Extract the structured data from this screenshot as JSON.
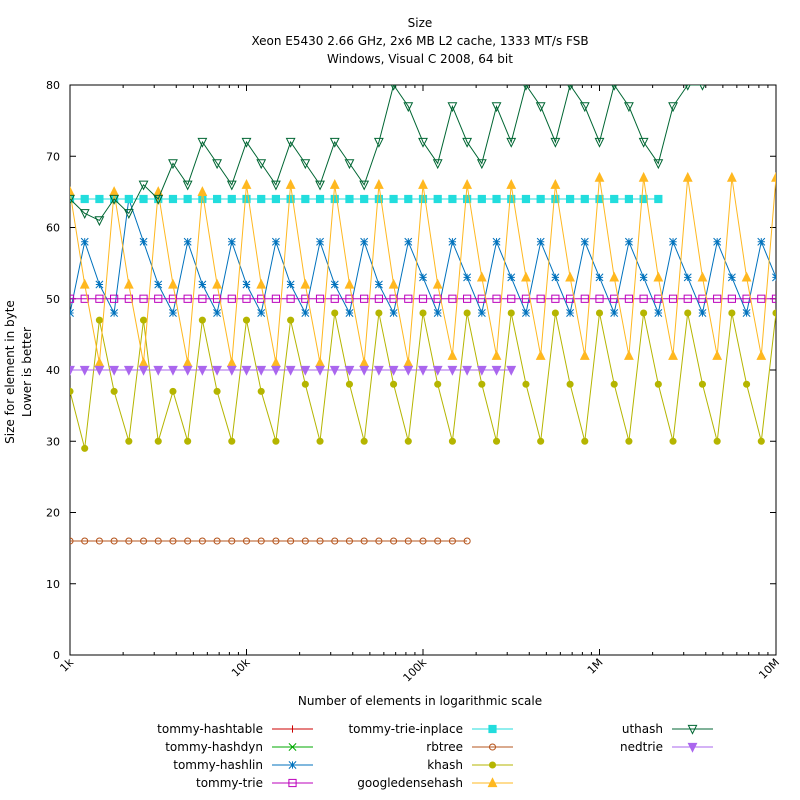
{
  "chart_data": {
    "type": "line",
    "title_lines": [
      "Size",
      "Xeon E5430 2.66 GHz, 2x6 MB L2 cache, 1333 MT/s FSB",
      "Windows, Visual C 2008, 64 bit"
    ],
    "xlabel": "Number of elements in logarithmic scale",
    "ylabel_lines": [
      "Size for element in byte",
      "Lower is better"
    ],
    "x_scale": "log",
    "xlim": [
      1000,
      10000000
    ],
    "ylim": [
      0,
      80
    ],
    "x_ticks": [
      {
        "value": 1000,
        "label": "1k"
      },
      {
        "value": 10000,
        "label": "10k"
      },
      {
        "value": 100000,
        "label": "100k"
      },
      {
        "value": 1000000,
        "label": "1M"
      },
      {
        "value": 10000000,
        "label": "10M"
      }
    ],
    "y_ticks": [
      0,
      10,
      20,
      30,
      40,
      50,
      60,
      70,
      80
    ],
    "grid": false,
    "legend_position": "bottom",
    "series": [
      {
        "name": "tommy-hashtable",
        "color": "#cc0000",
        "marker": "plus",
        "y": []
      },
      {
        "name": "tommy-hashdyn",
        "color": "#00aa00",
        "marker": "cross",
        "y": []
      },
      {
        "name": "tommy-hashlin",
        "color": "#0072bd",
        "marker": "star",
        "y": [
          48,
          58,
          52,
          48,
          64,
          58,
          52,
          48,
          58,
          52,
          48,
          58,
          52,
          48,
          58,
          52,
          48,
          58,
          52,
          48,
          58,
          52,
          48,
          58,
          53,
          48,
          58,
          53,
          48,
          58,
          53,
          48,
          58,
          53,
          48,
          58,
          53,
          48,
          58,
          53,
          48,
          58,
          53,
          48,
          58,
          53,
          48,
          58,
          53,
          48,
          58,
          53,
          48,
          58
        ]
      },
      {
        "name": "tommy-trie",
        "color": "#bb00bb",
        "marker": "square-open",
        "y": [
          50,
          50,
          50,
          50,
          50,
          50,
          50,
          50,
          50,
          50,
          50,
          50,
          50,
          50,
          50,
          50,
          50,
          50,
          50,
          50,
          50,
          50,
          50,
          50,
          50,
          50,
          50,
          50,
          50,
          50,
          50,
          50,
          50,
          50,
          50,
          50,
          50,
          50,
          50,
          50,
          50,
          50,
          50,
          50,
          50,
          50,
          50,
          50,
          50,
          50,
          50,
          50,
          50,
          50
        ]
      },
      {
        "name": "tommy-trie-inplace",
        "color": "#22dddd",
        "marker": "square",
        "y": [
          64,
          64,
          64,
          64,
          64,
          64,
          64,
          64,
          64,
          64,
          64,
          64,
          64,
          64,
          64,
          64,
          64,
          64,
          64,
          64,
          64,
          64,
          64,
          64,
          64,
          64,
          64,
          64,
          64,
          64,
          64,
          64,
          64,
          64,
          64,
          64,
          64,
          64,
          64,
          64,
          64
        ]
      },
      {
        "name": "rbtree",
        "color": "#b5541c",
        "marker": "circle-open",
        "y": [
          16,
          16,
          16,
          16,
          16,
          16,
          16,
          16,
          16,
          16,
          16,
          16,
          16,
          16,
          16,
          16,
          16,
          16,
          16,
          16,
          16,
          16,
          16,
          16,
          16,
          16,
          16,
          16
        ]
      },
      {
        "name": "khash",
        "color": "#b5b500",
        "marker": "circle",
        "y": [
          37,
          29,
          47,
          37,
          30,
          47,
          30,
          37,
          30,
          47,
          37,
          30,
          47,
          37,
          30,
          47,
          38,
          30,
          48,
          38,
          30,
          48,
          38,
          30,
          48,
          38,
          30,
          48,
          38,
          30,
          48,
          38,
          30,
          48,
          38,
          30,
          48,
          38,
          30,
          48,
          38,
          30,
          48,
          38,
          30,
          48,
          38,
          30,
          48,
          38,
          30,
          48,
          38,
          30
        ]
      },
      {
        "name": "googledensehash",
        "color": "#ffb820",
        "marker": "triangle",
        "y": [
          65,
          52,
          41,
          65,
          52,
          41,
          65,
          52,
          41,
          65,
          52,
          41,
          66,
          52,
          41,
          66,
          52,
          41,
          66,
          52,
          41,
          66,
          52,
          41,
          66,
          52,
          42,
          66,
          53,
          42,
          66,
          53,
          42,
          66,
          53,
          42,
          67,
          53,
          42,
          67,
          53,
          42,
          67,
          53,
          42,
          67,
          53,
          42,
          67,
          53,
          42,
          67,
          53,
          42
        ]
      },
      {
        "name": "uthash",
        "color": "#006633",
        "marker": "triangle-down-open",
        "y": [
          64,
          62,
          61,
          64,
          62,
          66,
          64,
          69,
          66,
          72,
          69,
          66,
          72,
          69,
          66,
          72,
          69,
          66,
          72,
          69,
          66,
          72,
          80,
          77,
          72,
          69,
          77,
          72,
          69,
          77,
          72,
          80,
          77,
          72,
          80,
          77,
          72,
          80,
          77,
          72,
          69,
          77,
          80,
          80
        ]
      },
      {
        "name": "nedtrie",
        "color": "#aa66ee",
        "marker": "triangle-down",
        "y": [
          40,
          40,
          40,
          40,
          40,
          40,
          40,
          40,
          40,
          40,
          40,
          40,
          40,
          40,
          40,
          40,
          40,
          40,
          40,
          40,
          40,
          40,
          40,
          40,
          40,
          40,
          40,
          40,
          40,
          40,
          40
        ]
      }
    ]
  }
}
